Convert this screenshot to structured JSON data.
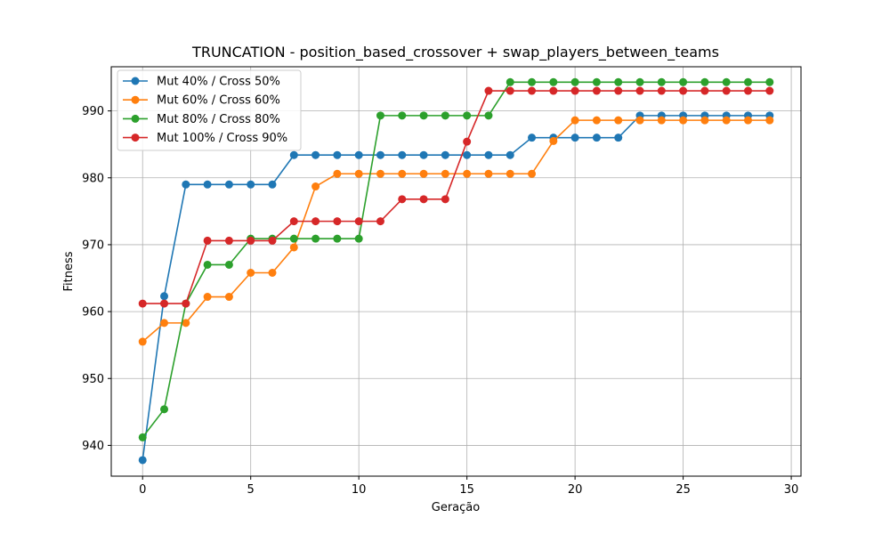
{
  "chart_data": {
    "type": "line",
    "title": "TRUNCATION - position_based_crossover + swap_players_between_teams",
    "xlabel": "Geração",
    "ylabel": "Fitness",
    "xlim": [
      -1.45,
      30.45
    ],
    "ylim": [
      935.4,
      996.6
    ],
    "xticks": [
      "0",
      "5",
      "10",
      "15",
      "20",
      "25",
      "30"
    ],
    "yticks": [
      "940",
      "950",
      "960",
      "970",
      "980",
      "990"
    ],
    "grid": true,
    "legend_position": "top-left",
    "x": [
      0,
      1,
      2,
      3,
      4,
      5,
      6,
      7,
      8,
      9,
      10,
      11,
      12,
      13,
      14,
      15,
      16,
      17,
      18,
      19,
      20,
      21,
      22,
      23,
      24,
      25,
      26,
      27,
      28,
      29
    ],
    "series": [
      {
        "name": "Mut 40% / Cross 50%",
        "color": "#1f77b4",
        "values": [
          937.8,
          962.3,
          979.0,
          979.0,
          979.0,
          979.0,
          979.0,
          983.4,
          983.4,
          983.4,
          983.4,
          983.4,
          983.4,
          983.4,
          983.4,
          983.4,
          983.4,
          983.4,
          986.0,
          986.0,
          986.0,
          986.0,
          986.0,
          989.3,
          989.3,
          989.3,
          989.3,
          989.3,
          989.3,
          989.3
        ]
      },
      {
        "name": "Mut 60% / Cross 60%",
        "color": "#ff7f0e",
        "values": [
          955.5,
          958.3,
          958.3,
          962.2,
          962.2,
          965.8,
          965.8,
          969.6,
          978.7,
          980.6,
          980.6,
          980.6,
          980.6,
          980.6,
          980.6,
          980.6,
          980.6,
          980.6,
          980.6,
          985.5,
          988.6,
          988.6,
          988.6,
          988.6,
          988.6,
          988.6,
          988.6,
          988.6,
          988.6,
          988.6
        ]
      },
      {
        "name": "Mut 80% / Cross 80%",
        "color": "#2ca02c",
        "values": [
          941.2,
          945.4,
          961.2,
          967.0,
          967.0,
          970.9,
          970.9,
          970.9,
          970.9,
          970.9,
          970.9,
          989.3,
          989.3,
          989.3,
          989.3,
          989.3,
          989.3,
          994.3,
          994.3,
          994.3,
          994.3,
          994.3,
          994.3,
          994.3,
          994.3,
          994.3,
          994.3,
          994.3,
          994.3,
          994.3
        ]
      },
      {
        "name": "Mut 100% / Cross 90%",
        "color": "#d62728",
        "values": [
          961.2,
          961.2,
          961.2,
          970.6,
          970.6,
          970.6,
          970.6,
          973.5,
          973.5,
          973.5,
          973.5,
          973.5,
          976.8,
          976.8,
          976.8,
          985.4,
          993.0,
          993.0,
          993.0,
          993.0,
          993.0,
          993.0,
          993.0,
          993.0,
          993.0,
          993.0,
          993.0,
          993.0,
          993.0,
          993.0
        ]
      }
    ]
  }
}
